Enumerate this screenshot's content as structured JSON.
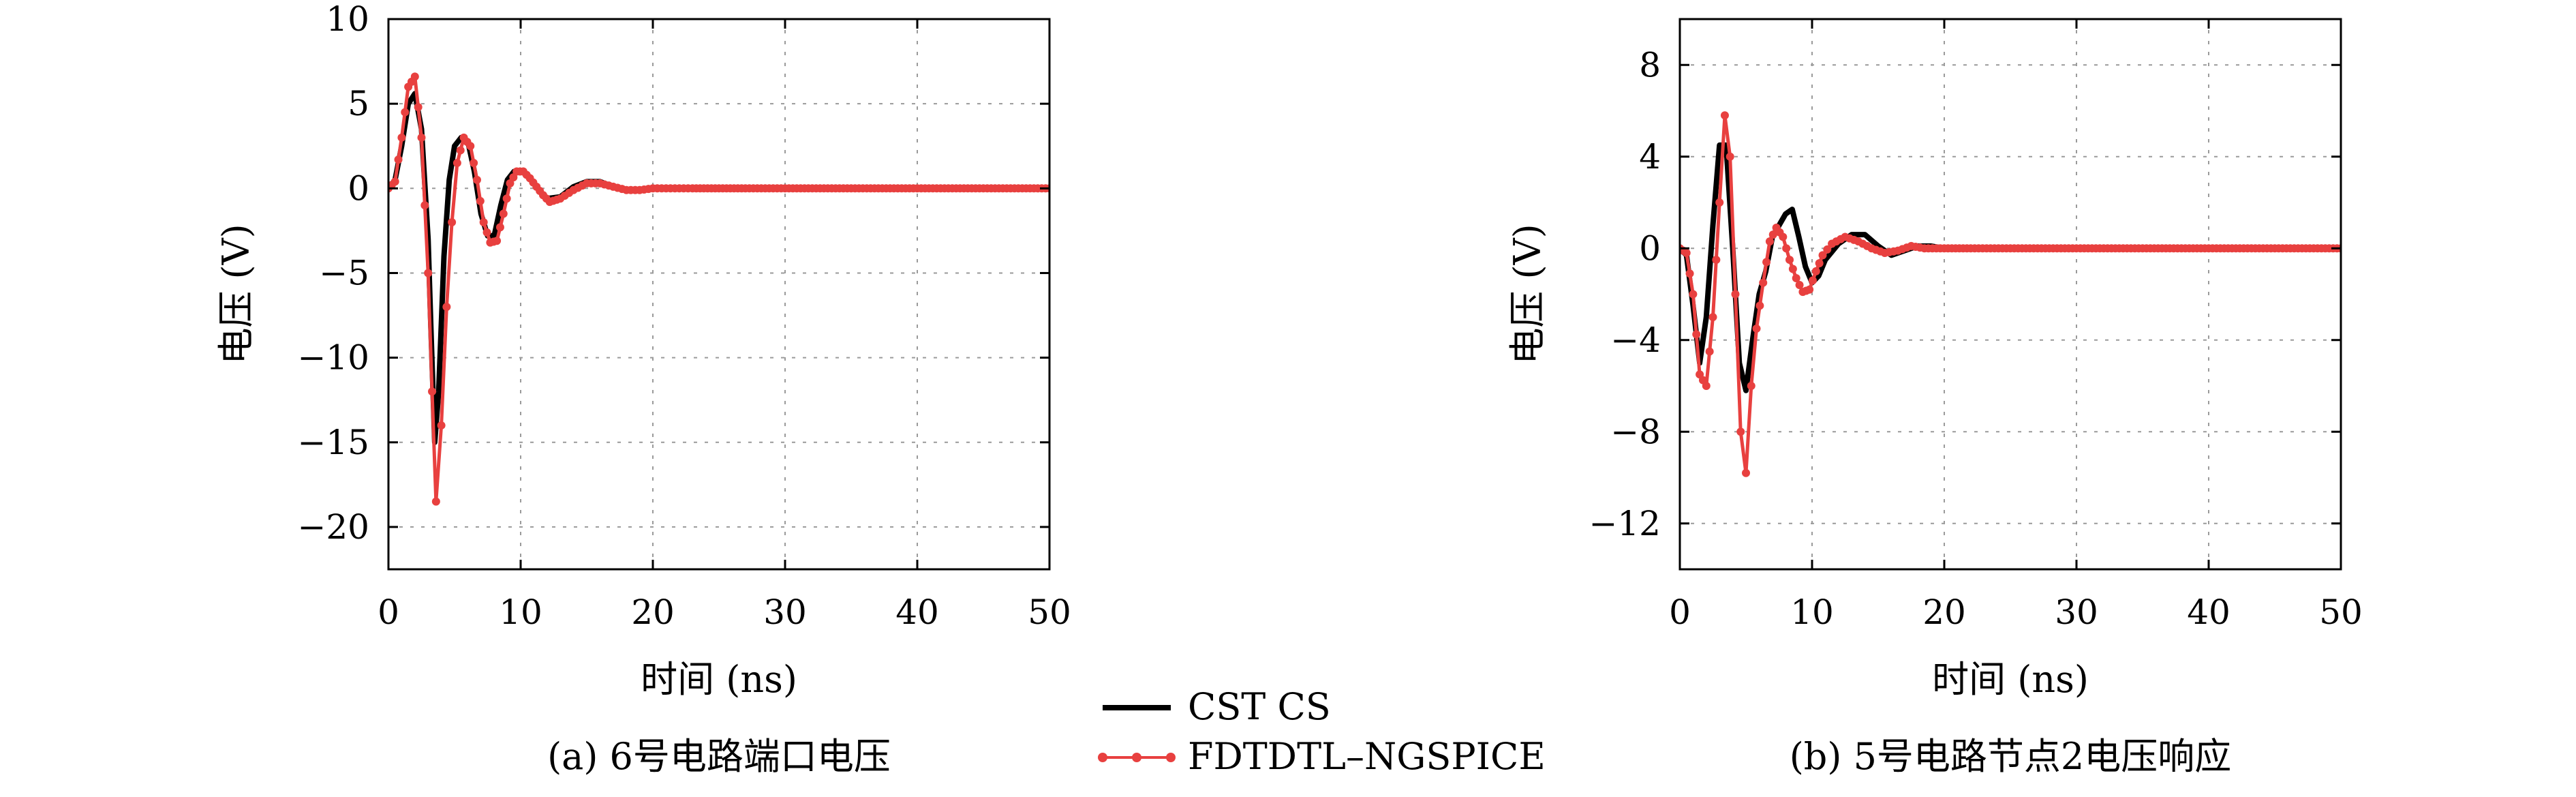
{
  "legend": {
    "items": [
      {
        "label": "CST CS",
        "color": "#000000",
        "style": "line"
      },
      {
        "label": "FDTDTL–NGSPICE",
        "color": "#e8403f",
        "style": "line-dot"
      }
    ]
  },
  "chart_data": [
    {
      "type": "line",
      "caption": "(a) 6号电路端口电压",
      "xlabel": "时间 (ns)",
      "ylabel": "电压 (V)",
      "xlim": [
        0,
        50
      ],
      "ylim": [
        -22.5,
        10
      ],
      "xticks": [
        0,
        10,
        20,
        30,
        40,
        50
      ],
      "yticks": [
        10,
        5,
        0,
        -5,
        -10,
        -15,
        -20
      ],
      "ytick_labels": [
        "10",
        "5",
        "0",
        "−5",
        "−10",
        "−15",
        "−20"
      ],
      "grid": true,
      "series": [
        {
          "name": "CST CS",
          "color": "#000000",
          "x": [
            0,
            0.5,
            1,
            1.5,
            2,
            2.5,
            3,
            3.2,
            3.5,
            3.8,
            4.2,
            4.6,
            5,
            5.5,
            6,
            6.5,
            7,
            7.5,
            8,
            8.5,
            9,
            9.5,
            10,
            10.5,
            11,
            11.5,
            12,
            13,
            14,
            15,
            16,
            17,
            18,
            19,
            20,
            21,
            22,
            23,
            25,
            27,
            30,
            35,
            40,
            45,
            50
          ],
          "y": [
            0,
            0.5,
            2.5,
            5,
            5.6,
            3.5,
            -3,
            -8,
            -15,
            -12,
            -4,
            0.5,
            2.5,
            3,
            2.8,
            1,
            -1.5,
            -2.8,
            -2.8,
            -1,
            0.5,
            1,
            1,
            0.8,
            0.3,
            -0.2,
            -0.6,
            -0.5,
            0.1,
            0.4,
            0.4,
            0.1,
            -0.1,
            -0.1,
            0,
            0,
            0,
            0,
            0,
            0,
            0,
            0,
            0,
            0,
            0
          ]
        },
        {
          "name": "FDTDTL–NGSPICE",
          "color": "#e8403f",
          "x": [
            0,
            0.5,
            1,
            1.5,
            2,
            2.5,
            3,
            3.3,
            3.6,
            4,
            4.4,
            4.8,
            5.2,
            5.7,
            6.2,
            6.7,
            7.2,
            7.7,
            8.2,
            8.7,
            9.2,
            9.7,
            10.2,
            10.7,
            11.2,
            11.7,
            12.2,
            13,
            14,
            15,
            16,
            17,
            18,
            19,
            20,
            21,
            22,
            23,
            25,
            27,
            30,
            35,
            40,
            45,
            50
          ],
          "y": [
            0,
            0.4,
            3,
            6,
            6.6,
            3,
            -5,
            -12,
            -18.5,
            -14,
            -7,
            -2,
            1.5,
            3,
            2.5,
            0.5,
            -2,
            -3.2,
            -3.1,
            -1.5,
            0.3,
            1,
            1,
            0.6,
            0.1,
            -0.4,
            -0.8,
            -0.6,
            -0.1,
            0.3,
            0.3,
            0.1,
            -0.1,
            -0.1,
            0,
            0,
            0,
            0,
            0,
            0,
            0,
            0,
            0,
            0,
            0
          ]
        }
      ]
    },
    {
      "type": "line",
      "caption": "(b) 5号电路节点2电压响应",
      "xlabel": "时间 (ns)",
      "ylabel": "电压 (V)",
      "xlim": [
        0,
        50
      ],
      "ylim": [
        -14,
        10
      ],
      "xticks": [
        0,
        10,
        20,
        30,
        40,
        50
      ],
      "yticks": [
        8,
        4,
        0,
        -4,
        -8,
        -12
      ],
      "ytick_labels": [
        "8",
        "4",
        "0",
        "−4",
        "−8",
        "−12"
      ],
      "grid": true,
      "series": [
        {
          "name": "CST CS",
          "color": "#000000",
          "x": [
            0,
            0.5,
            1,
            1.5,
            2,
            2.5,
            3,
            3.5,
            4,
            4.5,
            5,
            5.5,
            6,
            6.5,
            7,
            7.5,
            8,
            8.5,
            9,
            9.5,
            10,
            10.5,
            11,
            12,
            13,
            14,
            15,
            16,
            17,
            18,
            19,
            20,
            22,
            25,
            30,
            35,
            40,
            45,
            50
          ],
          "y": [
            0,
            -0.3,
            -2.5,
            -5,
            -3,
            1,
            4.5,
            4.5,
            0,
            -5,
            -6.2,
            -4,
            -2,
            -1,
            0.5,
            1,
            1.5,
            1.7,
            0.5,
            -0.8,
            -1.5,
            -1.2,
            -0.5,
            0.2,
            0.6,
            0.6,
            0.1,
            -0.3,
            -0.1,
            0.1,
            0.1,
            0,
            0,
            0,
            0,
            0,
            0,
            0,
            0
          ]
        },
        {
          "name": "FDTDTL–NGSPICE",
          "color": "#e8403f",
          "x": [
            0,
            0.5,
            1,
            1.5,
            2,
            2.5,
            3,
            3.4,
            3.8,
            4.2,
            4.6,
            5,
            5.4,
            5.8,
            6.3,
            6.8,
            7.3,
            7.8,
            8.3,
            8.8,
            9.3,
            9.8,
            10.3,
            10.8,
            11.5,
            12.5,
            13.5,
            14.5,
            15.5,
            16.5,
            17.5,
            18.5,
            20,
            22,
            25,
            30,
            35,
            40,
            45,
            50
          ],
          "y": [
            0,
            -0.2,
            -2,
            -5.5,
            -6,
            -3,
            2,
            5.8,
            4,
            -2,
            -8,
            -9.8,
            -6,
            -3.5,
            -1.5,
            0.3,
            0.9,
            0.5,
            -0.5,
            -1.3,
            -1.9,
            -1.8,
            -1,
            -0.3,
            0.2,
            0.5,
            0.3,
            0,
            -0.2,
            -0.1,
            0.1,
            0,
            0,
            0,
            0,
            0,
            0,
            0,
            0,
            0
          ]
        }
      ]
    }
  ]
}
